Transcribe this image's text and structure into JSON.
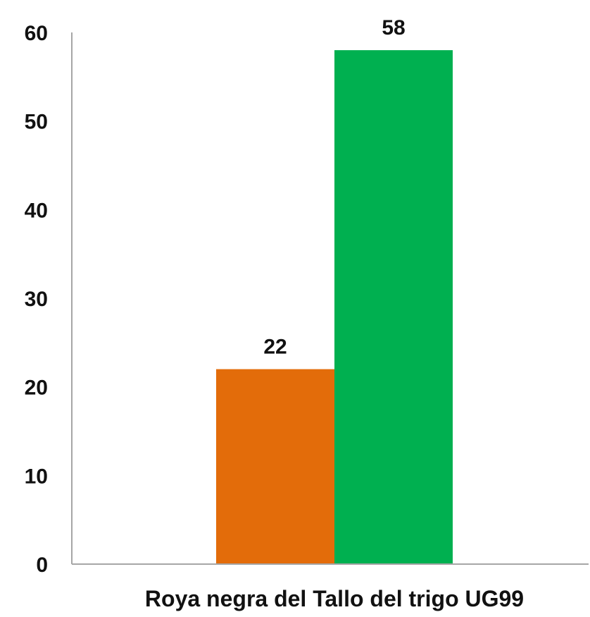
{
  "chart_data": {
    "type": "bar",
    "categories": [
      "Roya negra del Tallo del trigo UG99"
    ],
    "series": [
      {
        "values": [
          22
        ],
        "color": "#E36C0A"
      },
      {
        "values": [
          58
        ],
        "color": "#00B050"
      }
    ],
    "ylim": [
      0,
      60
    ],
    "yticks": [
      0,
      10,
      20,
      30,
      40,
      50,
      60
    ],
    "grid": false,
    "data_labels": true,
    "axis_color": "#A6A6A6"
  }
}
